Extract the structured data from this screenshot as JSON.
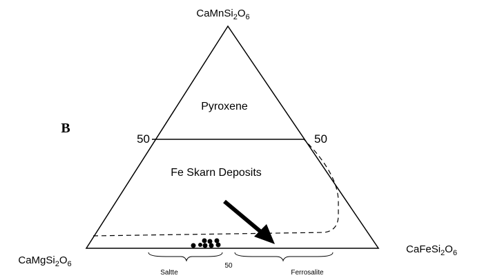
{
  "panel_label": "B",
  "vertices": {
    "top": "CaMnSi2O6",
    "left": "CaMgSi2O6",
    "right": "CaFeSi2O6"
  },
  "fields": {
    "upper": "Pyroxene",
    "lower": "Fe Skarn Deposits"
  },
  "edge_marks": {
    "left": "50",
    "right": "50"
  },
  "base_labels": {
    "left": "Saltte",
    "middle": "50",
    "right": "Ferrosalite"
  }
}
